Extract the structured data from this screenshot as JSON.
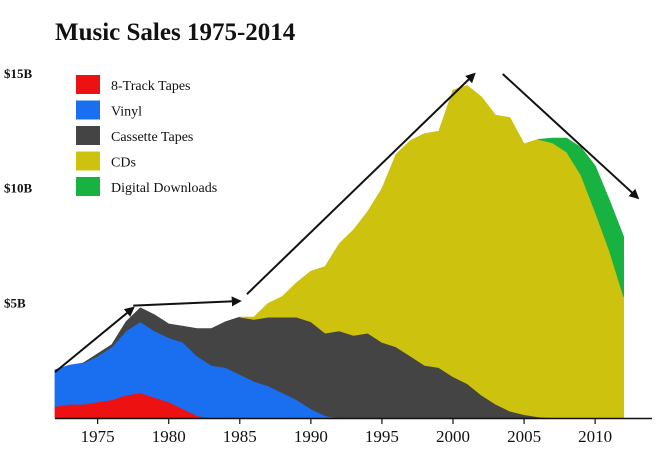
{
  "chart_data": {
    "type": "area",
    "stacked": true,
    "title": "Music Sales 1975-2014",
    "xlabel": "",
    "ylabel": "",
    "xlim": [
      1972,
      2014
    ],
    "ylim": [
      0,
      15
    ],
    "x_ticks": [
      1975,
      1980,
      1985,
      1990,
      1995,
      2000,
      2005,
      2010
    ],
    "y_ticks": [
      {
        "value": 5,
        "label": "$5B"
      },
      {
        "value": 10,
        "label": "$10B"
      },
      {
        "value": 15,
        "label": "$15B"
      }
    ],
    "x": [
      1972,
      1973,
      1974,
      1975,
      1976,
      1977,
      1978,
      1979,
      1980,
      1981,
      1982,
      1983,
      1984,
      1985,
      1986,
      1987,
      1988,
      1989,
      1990,
      1991,
      1992,
      1993,
      1994,
      1995,
      1996,
      1997,
      1998,
      1999,
      2000,
      2001,
      2002,
      2003,
      2004,
      2005,
      2006,
      2007,
      2008,
      2009,
      2010,
      2011,
      2012
    ],
    "series": [
      {
        "name": "8-Track Tapes",
        "color": "#ee1111",
        "values": [
          0.5,
          0.6,
          0.6,
          0.7,
          0.8,
          1.0,
          1.1,
          0.9,
          0.7,
          0.4,
          0.1,
          0,
          0,
          0,
          0,
          0,
          0,
          0,
          0,
          0,
          0,
          0,
          0,
          0,
          0,
          0,
          0,
          0,
          0,
          0,
          0,
          0,
          0,
          0,
          0,
          0,
          0,
          0,
          0,
          0,
          0
        ]
      },
      {
        "name": "Vinyl",
        "color": "#1a6ff0",
        "values": [
          1.6,
          1.7,
          1.8,
          2.0,
          2.3,
          2.8,
          3.1,
          2.9,
          2.8,
          2.9,
          2.6,
          2.3,
          2.2,
          1.9,
          1.6,
          1.4,
          1.1,
          0.8,
          0.4,
          0.1,
          0,
          0,
          0,
          0,
          0,
          0,
          0,
          0,
          0,
          0,
          0,
          0,
          0,
          0,
          0,
          0,
          0,
          0,
          0,
          0,
          0
        ]
      },
      {
        "name": "Cassette Tapes",
        "color": "#444444",
        "values": [
          0,
          0,
          0,
          0.1,
          0.1,
          0.4,
          0.6,
          0.7,
          0.6,
          0.7,
          1.2,
          1.6,
          2.0,
          2.5,
          2.7,
          3.0,
          3.3,
          3.6,
          3.8,
          3.6,
          3.8,
          3.6,
          3.7,
          3.3,
          3.1,
          2.7,
          2.3,
          2.2,
          1.8,
          1.5,
          1.0,
          0.6,
          0.3,
          0.15,
          0.05,
          0,
          0,
          0,
          0,
          0,
          0
        ]
      },
      {
        "name": "CDs",
        "color": "#cdc30e",
        "values": [
          0,
          0,
          0,
          0,
          0,
          0,
          0,
          0,
          0,
          0,
          0,
          0,
          0,
          0,
          0.1,
          0.6,
          0.9,
          1.5,
          2.2,
          2.9,
          3.8,
          4.6,
          5.3,
          6.7,
          8.4,
          9.4,
          10.1,
          10.3,
          12.5,
          13.0,
          13.0,
          12.6,
          12.8,
          11.8,
          12.1,
          12.0,
          11.6,
          10.6,
          9.0,
          7.3,
          5.3
        ]
      },
      {
        "name": "Digital Downloads",
        "color": "#18b241",
        "values": [
          0,
          0,
          0,
          0,
          0,
          0,
          0,
          0,
          0,
          0,
          0,
          0,
          0,
          0,
          0,
          0,
          0,
          0,
          0,
          0,
          0,
          0,
          0,
          0,
          0,
          0,
          0,
          0,
          0,
          0,
          0,
          0,
          0,
          0,
          0,
          0.2,
          0.6,
          1.2,
          2.0,
          2.2,
          2.6
        ]
      }
    ],
    "trend_arrows": [
      {
        "from": [
          1972,
          2.0
        ],
        "to": [
          1977.5,
          4.8
        ]
      },
      {
        "from": [
          1977.5,
          4.9
        ],
        "to": [
          1985,
          5.1
        ]
      },
      {
        "from": [
          1985.5,
          5.4
        ],
        "to": [
          2001.5,
          15.0
        ]
      },
      {
        "from": [
          2003.5,
          15.0
        ],
        "to": [
          2013,
          9.6
        ]
      }
    ]
  }
}
